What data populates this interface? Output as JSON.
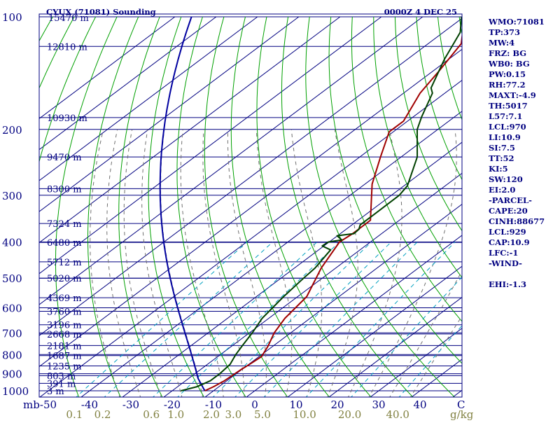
{
  "chart_data": {
    "type": "line",
    "title": "CYUX (71081) Sounding",
    "valid_time": "0000Z  4 DEC 25",
    "axes": {
      "pressure_unit_label": "mb",
      "pressure_ticks": [
        100,
        200,
        300,
        400,
        500,
        600,
        700,
        800,
        900,
        1000
      ],
      "pressure_range": [
        100,
        1050
      ],
      "temperature_ticks": [
        "-50",
        "-40",
        "-30",
        "-20",
        "-10",
        "0",
        "10",
        "20",
        "30",
        "40"
      ],
      "temperature_values": [
        -50,
        -40,
        -30,
        -20,
        -10,
        0,
        10,
        20,
        30,
        40
      ],
      "temperature_range": [
        -50,
        50
      ],
      "mixing_ratio_unit": "g/kg",
      "mixing_ratio_labels": [
        "0.1",
        "0.2",
        "0.6",
        "1.0",
        "2.0",
        "3.0",
        "5.0",
        "10.0",
        "20.0",
        "40.0"
      ],
      "mixing_ratio_values": [
        0.1,
        0.2,
        0.6,
        1.0,
        2.0,
        3.0,
        5.0,
        10.0,
        20.0,
        40.0
      ],
      "edge_label": "C"
    },
    "height_levels": [
      {
        "p": 120,
        "label": "12810 m"
      },
      {
        "p": 186,
        "label": "10930 m"
      },
      {
        "p": 237,
        "label": "9470 m"
      },
      {
        "p": 288,
        "label": "8300 m"
      },
      {
        "p": 357,
        "label": "7324 m"
      },
      {
        "p": 401,
        "label": "6480 m"
      },
      {
        "p": 452,
        "label": "5712 m"
      },
      {
        "p": 500,
        "label": "5020 m"
      },
      {
        "p": 564,
        "label": "4369 m"
      },
      {
        "p": 613,
        "label": "3760 m"
      },
      {
        "p": 666,
        "label": "3196 m"
      },
      {
        "p": 705,
        "label": "2668 m"
      },
      {
        "p": 757,
        "label": "2181 m"
      },
      {
        "p": 805,
        "label": "1687 m"
      },
      {
        "p": 858,
        "label": "1235 m"
      },
      {
        "p": 911,
        "label": "803 m"
      },
      {
        "p": 955,
        "label": "391 m"
      },
      {
        "p": 1000,
        "label": "3 m"
      }
    ],
    "top_height_label": "15470 m",
    "series": [
      {
        "name": "Temperature",
        "color": "#a00000",
        "p": [
          1000,
          975,
          940,
          880,
          850,
          810,
          760,
          700,
          640,
          560,
          470,
          400,
          380,
          350,
          280,
          237,
          203,
          190,
          160,
          140,
          118,
          108,
          100
        ],
        "t": [
          -12.1,
          -11.3,
          -10.6,
          -10.2,
          -9.8,
          -9.4,
          -11.2,
          -14.0,
          -16.1,
          -17.8,
          -23.5,
          -27.5,
          -27.0,
          -27.0,
          -38.3,
          -45.0,
          -51.0,
          -51.0,
          -56.0,
          -58.5,
          -62.0,
          -66.2,
          -68.2
        ]
      },
      {
        "name": "Dewpoint",
        "color": "#004000",
        "p": [
          1000,
          975,
          940,
          900,
          850,
          800,
          760,
          700,
          640,
          560,
          500,
          470,
          420,
          410,
          400,
          395,
          385,
          380,
          370,
          360,
          340,
          300,
          283,
          237,
          200,
          185,
          160,
          155,
          130,
          110,
          100
        ],
        "t": [
          -17.9,
          -15.3,
          -14.0,
          -14.0,
          -14.5,
          -16.3,
          -17.5,
          -19.3,
          -21.6,
          -23.4,
          -24.5,
          -25.0,
          -27.1,
          -30.4,
          -30.2,
          -27.6,
          -30.1,
          -26.7,
          -26.9,
          -28.0,
          -28.0,
          -28.1,
          -29.2,
          -36.1,
          -45.0,
          -48.0,
          -53.0,
          -55.0,
          -61.0,
          -65.9,
          -70.6
        ]
      }
    ],
    "reference_line_sets": [
      "isotherms",
      "isobars",
      "dry adiabats",
      "moist adiabats",
      "mixing ratio lines",
      "parcel trace"
    ]
  },
  "colors": {
    "isobar": "#000080",
    "isotherm": "#000080",
    "dry_adiabat": "#00a000",
    "moist_adiabat": "#707070",
    "mixing_ratio": "#00a0c0",
    "parcel": "#0000a0",
    "axis_label": "#000080",
    "mixing_label": "#808040"
  },
  "indices": [
    "WMO:71081",
    "TP:373",
    "MW:4",
    "FRZ: BG",
    "WB0: BG",
    "PW:0.15",
    "RH:77.2",
    "MAXT:-4.9",
    "TH:5017",
    "L57:7.1",
    "LCL:970",
    "LI:10.9",
    "SI:7.5",
    "TT:52",
    "KI:5",
    "SW:120",
    "EI:2.0",
    "-PARCEL-",
    "CAPE:20",
    "CINH:88677",
    "LCL:929",
    "CAP:10.9",
    "LFC:-1",
    "-WIND-",
    "",
    "EHI:-1.3"
  ]
}
